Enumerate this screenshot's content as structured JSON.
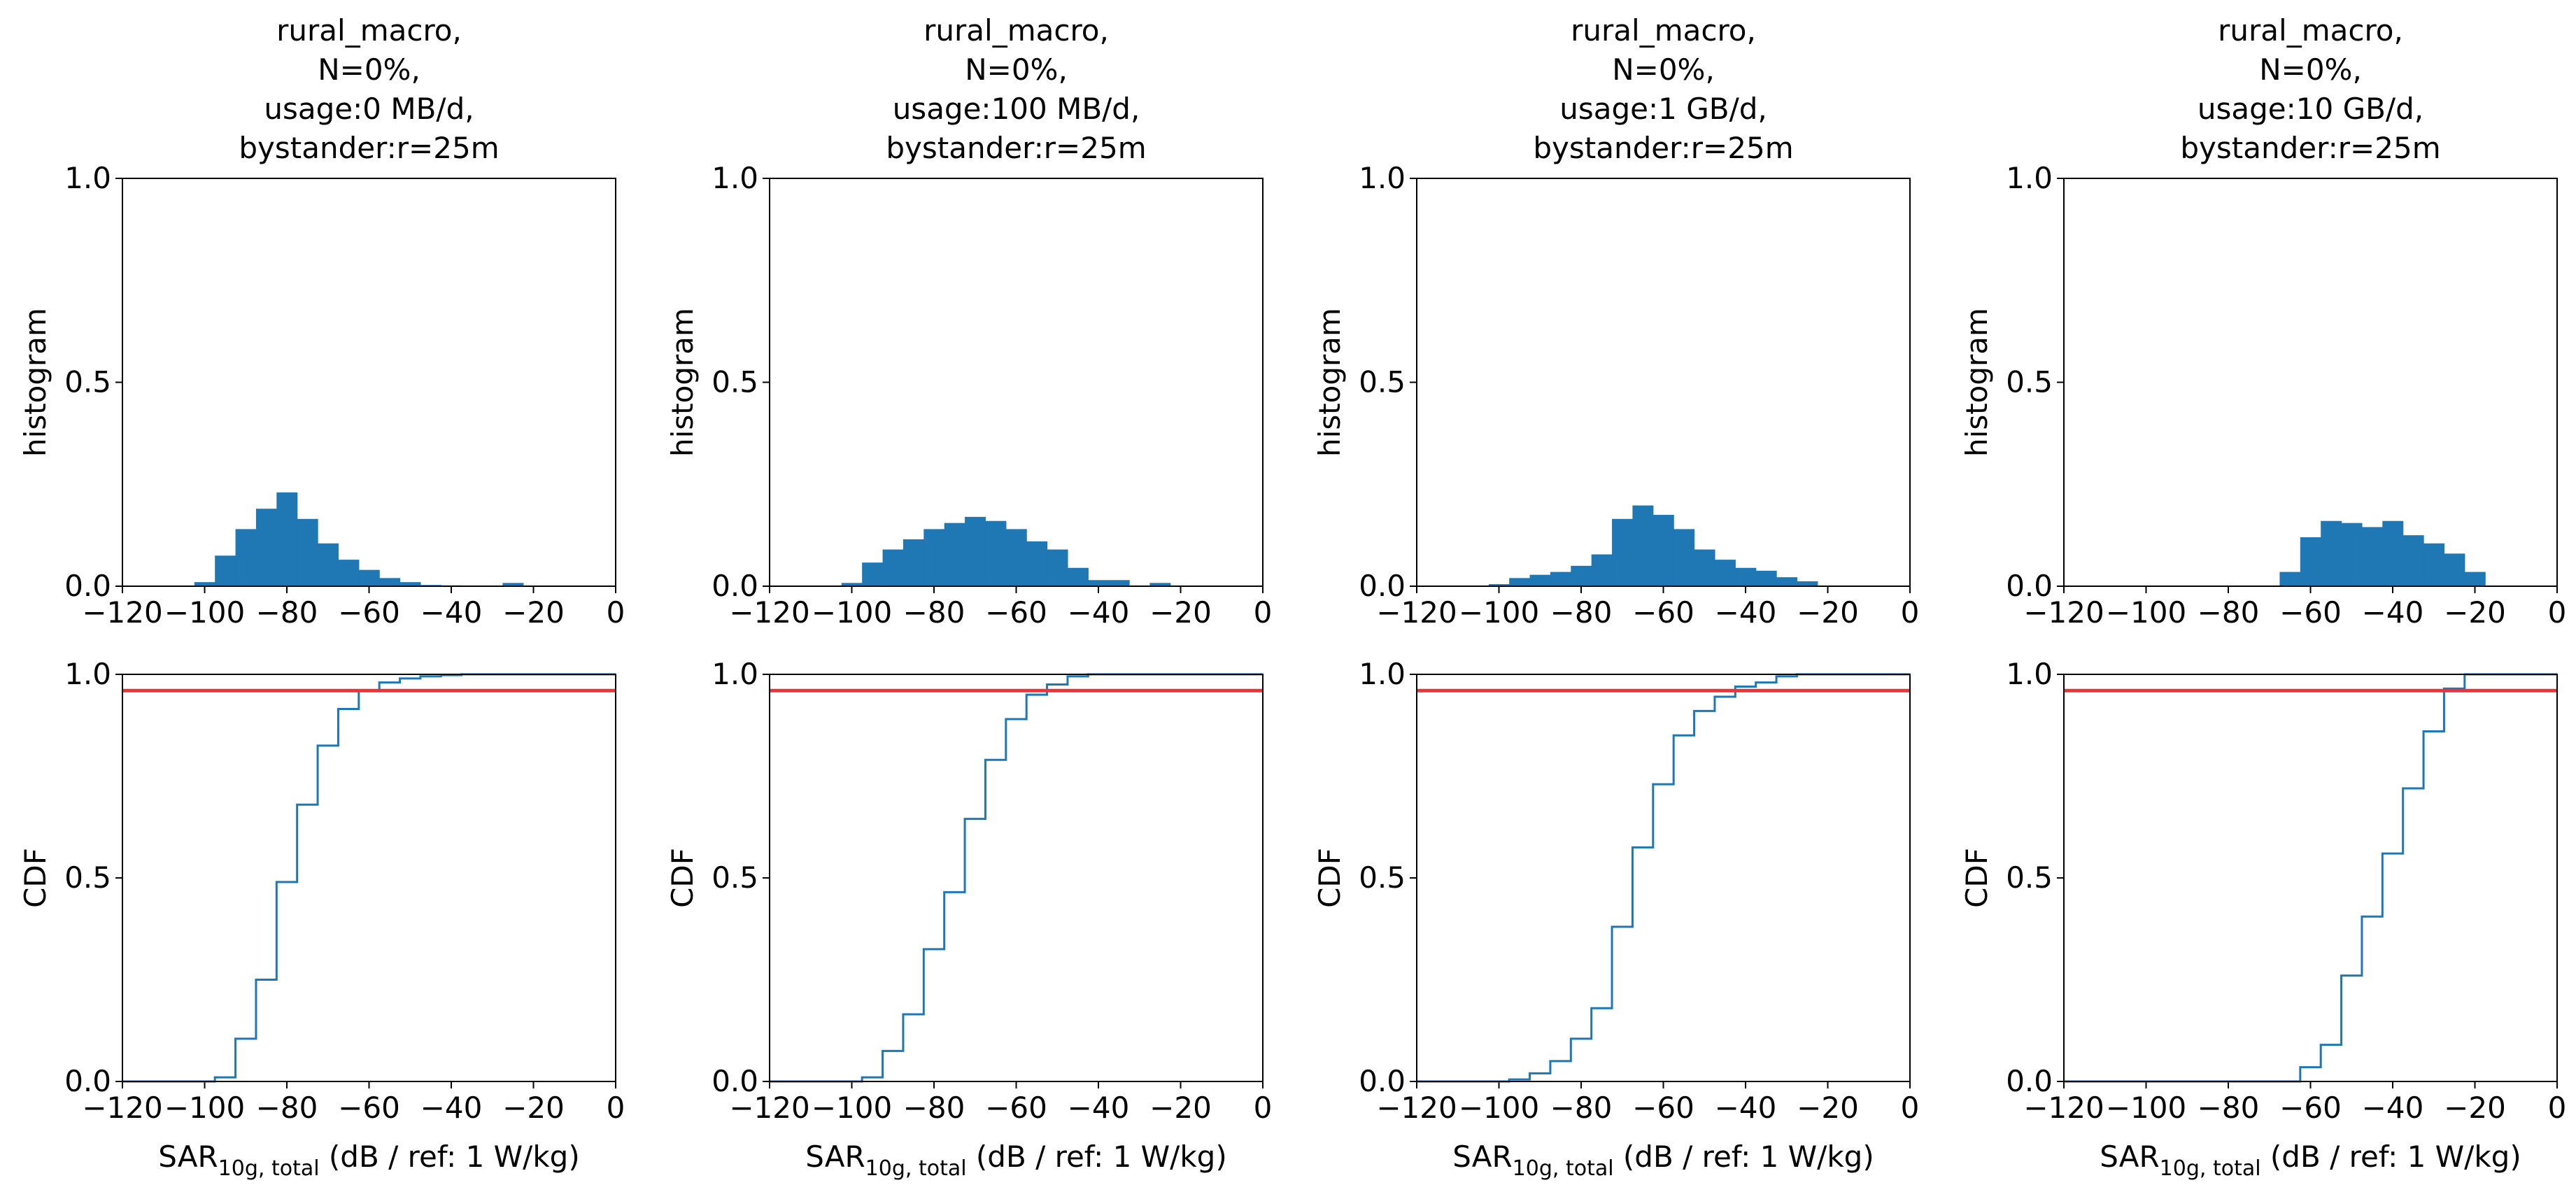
{
  "figure": {
    "hist_ylabel": "histogram",
    "cdf_ylabel": "CDF",
    "xlabel_main": "SAR",
    "xlabel_sub": "10g, total",
    "xlabel_tail": " (dB / ref: 1 W/kg)"
  },
  "colors": {
    "series": "#1f77b4",
    "threshold": "#e8353b",
    "axes": "#000000"
  },
  "chart_data": [
    {
      "type": "bar",
      "title": [
        "rural_macro,",
        "N=0%,",
        "usage:0 MB/d,",
        "bystander:r=25m"
      ],
      "xlim": [
        -120,
        0
      ],
      "xticks": [
        -120,
        -100,
        -80,
        -60,
        -40,
        -20,
        0
      ],
      "hist": {
        "ylabel": "histogram",
        "ylim": [
          0,
          1.0
        ],
        "yticks": [
          0.0,
          0.5,
          1.0
        ],
        "bin_edges": [
          -102.5,
          -97.5,
          -92.5,
          -87.5,
          -82.5,
          -77.5,
          -72.5,
          -67.5,
          -62.5,
          -57.5,
          -52.5,
          -47.5,
          -42.5,
          -37.5,
          -32.5,
          -27.5,
          -22.5,
          -17.5
        ],
        "values": [
          0.01,
          0.075,
          0.14,
          0.19,
          0.23,
          0.165,
          0.105,
          0.065,
          0.04,
          0.02,
          0.01,
          0.003,
          0.002,
          0.0,
          0.0,
          0.008,
          0.0
        ]
      },
      "cdf": {
        "ylabel": "CDF",
        "ylim": [
          0,
          1.0
        ],
        "yticks": [
          0.0,
          0.5,
          1.0
        ],
        "threshold": 0.96,
        "x": [
          -120,
          -102.5,
          -97.5,
          -92.5,
          -87.5,
          -82.5,
          -77.5,
          -72.5,
          -67.5,
          -62.5,
          -57.5,
          -52.5,
          -47.5,
          -42.5,
          -37.5,
          -32.5
        ],
        "y": [
          0,
          0,
          0.01,
          0.105,
          0.25,
          0.49,
          0.68,
          0.825,
          0.915,
          0.96,
          0.98,
          0.99,
          0.995,
          0.998,
          1.0,
          1.0
        ]
      }
    },
    {
      "type": "bar",
      "title": [
        "rural_macro,",
        "N=0%,",
        "usage:100 MB/d,",
        "bystander:r=25m"
      ],
      "xlim": [
        -120,
        0
      ],
      "xticks": [
        -120,
        -100,
        -80,
        -60,
        -40,
        -20,
        0
      ],
      "hist": {
        "ylabel": "histogram",
        "ylim": [
          0,
          1.0
        ],
        "yticks": [
          0.0,
          0.5,
          1.0
        ],
        "bin_edges": [
          -102.5,
          -97.5,
          -92.5,
          -87.5,
          -82.5,
          -77.5,
          -72.5,
          -67.5,
          -62.5,
          -57.5,
          -52.5,
          -47.5,
          -42.5,
          -37.5,
          -32.5,
          -27.5,
          -22.5,
          -17.5
        ],
        "values": [
          0.008,
          0.058,
          0.09,
          0.115,
          0.14,
          0.155,
          0.17,
          0.16,
          0.14,
          0.11,
          0.09,
          0.045,
          0.015,
          0.015,
          0.0,
          0.008,
          0.0
        ]
      },
      "cdf": {
        "ylabel": "CDF",
        "ylim": [
          0,
          1.0
        ],
        "yticks": [
          0.0,
          0.5,
          1.0
        ],
        "threshold": 0.96,
        "x": [
          -120,
          -102.5,
          -97.5,
          -92.5,
          -87.5,
          -82.5,
          -77.5,
          -72.5,
          -67.5,
          -62.5,
          -57.5,
          -52.5,
          -47.5,
          -42.5,
          -37.5,
          -32.5
        ],
        "y": [
          0,
          0,
          0.01,
          0.075,
          0.165,
          0.325,
          0.465,
          0.645,
          0.79,
          0.89,
          0.95,
          0.975,
          0.995,
          1.0,
          1.0,
          1.0
        ]
      }
    },
    {
      "type": "bar",
      "title": [
        "rural_macro,",
        "N=0%,",
        "usage:1 GB/d,",
        "bystander:r=25m"
      ],
      "xlim": [
        -120,
        0
      ],
      "xticks": [
        -120,
        -100,
        -80,
        -60,
        -40,
        -20,
        0
      ],
      "hist": {
        "ylabel": "histogram",
        "ylim": [
          0,
          1.0
        ],
        "yticks": [
          0.0,
          0.5,
          1.0
        ],
        "bin_edges": [
          -102.5,
          -97.5,
          -92.5,
          -87.5,
          -82.5,
          -77.5,
          -72.5,
          -67.5,
          -62.5,
          -57.5,
          -52.5,
          -47.5,
          -42.5,
          -37.5,
          -32.5,
          -27.5,
          -22.5,
          -17.5
        ],
        "values": [
          0.005,
          0.02,
          0.028,
          0.035,
          0.05,
          0.078,
          0.165,
          0.198,
          0.175,
          0.14,
          0.09,
          0.065,
          0.045,
          0.038,
          0.022,
          0.012,
          0.0
        ]
      },
      "cdf": {
        "ylabel": "CDF",
        "ylim": [
          0,
          1.0
        ],
        "yticks": [
          0.0,
          0.5,
          1.0
        ],
        "threshold": 0.96,
        "x": [
          -120,
          -102.5,
          -97.5,
          -92.5,
          -87.5,
          -82.5,
          -77.5,
          -72.5,
          -67.5,
          -62.5,
          -57.5,
          -52.5,
          -47.5,
          -42.5,
          -37.5,
          -32.5,
          -27.5,
          -22.5,
          -17.5
        ],
        "y": [
          0,
          0,
          0.005,
          0.02,
          0.05,
          0.105,
          0.18,
          0.38,
          0.575,
          0.73,
          0.85,
          0.91,
          0.945,
          0.97,
          0.98,
          0.995,
          1.0,
          1.0,
          1.0
        ]
      }
    },
    {
      "type": "bar",
      "title": [
        "rural_macro,",
        "N=0%,",
        "usage:10 GB/d,",
        "bystander:r=25m"
      ],
      "xlim": [
        -120,
        0
      ],
      "xticks": [
        -120,
        -100,
        -80,
        -60,
        -40,
        -20,
        0
      ],
      "hist": {
        "ylabel": "histogram",
        "ylim": [
          0,
          1.0
        ],
        "yticks": [
          0.0,
          0.5,
          1.0
        ],
        "bin_edges": [
          -67.5,
          -62.5,
          -57.5,
          -52.5,
          -47.5,
          -42.5,
          -37.5,
          -32.5,
          -27.5,
          -22.5,
          -17.5,
          -12.5
        ],
        "values": [
          0.035,
          0.12,
          0.16,
          0.155,
          0.145,
          0.16,
          0.125,
          0.105,
          0.08,
          0.035,
          0.0
        ]
      },
      "cdf": {
        "ylabel": "CDF",
        "ylim": [
          0,
          1.0
        ],
        "yticks": [
          0.0,
          0.5,
          1.0
        ],
        "threshold": 0.96,
        "x": [
          -120,
          -67.5,
          -62.5,
          -57.5,
          -52.5,
          -47.5,
          -42.5,
          -37.5,
          -32.5,
          -27.5,
          -22.5,
          -17.5,
          -12.5
        ],
        "y": [
          0,
          0,
          0.035,
          0.09,
          0.26,
          0.405,
          0.56,
          0.72,
          0.86,
          0.965,
          1.0,
          1.0,
          1.0
        ]
      }
    }
  ]
}
